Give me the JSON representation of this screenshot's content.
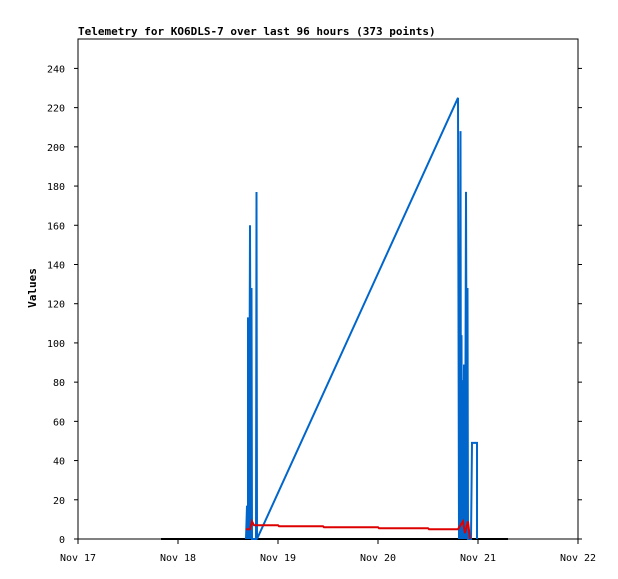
{
  "chart_data": {
    "type": "line",
    "title": "Telemetry for KO6DLS-7 over last 96 hours (373 points)",
    "xlabel": "",
    "ylabel": "Values",
    "x_tick_labels": [
      "Nov 17",
      "Nov 18",
      "Nov 19",
      "Nov 20",
      "Nov 21",
      "Nov 22"
    ],
    "x_tick_values": [
      17,
      18,
      19,
      20,
      21,
      22
    ],
    "xlim": [
      17,
      22
    ],
    "y_tick_labels": [
      "0",
      "20",
      "40",
      "60",
      "80",
      "100",
      "120",
      "140",
      "160",
      "180",
      "200",
      "220",
      "240"
    ],
    "y_tick_values": [
      0,
      20,
      40,
      60,
      80,
      100,
      120,
      140,
      160,
      180,
      200,
      220,
      240
    ],
    "ylim": [
      0,
      255
    ],
    "grid": false,
    "legend": "none",
    "series": [
      {
        "color": "#000000",
        "points": [
          [
            17.83,
            0
          ],
          [
            18.68,
            0
          ],
          [
            18.69,
            0
          ],
          [
            21.3,
            0
          ]
        ]
      },
      {
        "color": "#0066cc",
        "points": [
          [
            18.68,
            0
          ],
          [
            18.69,
            17
          ],
          [
            18.7,
            0
          ],
          [
            18.7,
            113
          ],
          [
            18.71,
            0
          ],
          [
            18.72,
            160
          ],
          [
            18.73,
            0
          ],
          [
            18.735,
            128
          ],
          [
            18.74,
            0
          ],
          [
            18.78,
            0
          ],
          [
            18.785,
            177
          ],
          [
            18.79,
            0
          ],
          [
            20.8,
            225
          ],
          [
            20.81,
            0
          ],
          [
            20.815,
            113
          ],
          [
            20.82,
            0
          ],
          [
            20.825,
            208
          ],
          [
            20.83,
            0
          ],
          [
            20.835,
            104
          ],
          [
            20.84,
            0
          ],
          [
            20.845,
            81
          ],
          [
            20.85,
            0
          ],
          [
            20.86,
            89
          ],
          [
            20.87,
            0
          ],
          [
            20.88,
            177
          ],
          [
            20.89,
            0
          ],
          [
            20.895,
            128
          ],
          [
            20.9,
            0
          ],
          [
            20.92,
            0
          ],
          [
            20.93,
            0
          ],
          [
            20.94,
            49
          ],
          [
            20.99,
            49
          ],
          [
            20.99,
            0
          ]
        ]
      },
      {
        "color": "#dd0000",
        "points": [
          [
            18.68,
            5
          ],
          [
            18.72,
            5
          ],
          [
            18.74,
            9
          ],
          [
            18.76,
            7
          ],
          [
            18.8,
            7
          ],
          [
            19.0,
            7
          ],
          [
            19.01,
            6.5
          ],
          [
            19.45,
            6.5
          ],
          [
            19.46,
            6
          ],
          [
            20.0,
            6
          ],
          [
            20.01,
            5.5
          ],
          [
            20.5,
            5.5
          ],
          [
            20.51,
            5
          ],
          [
            20.8,
            5
          ],
          [
            20.85,
            9
          ],
          [
            20.87,
            3
          ],
          [
            20.9,
            9
          ],
          [
            20.92,
            0
          ]
        ]
      }
    ]
  }
}
